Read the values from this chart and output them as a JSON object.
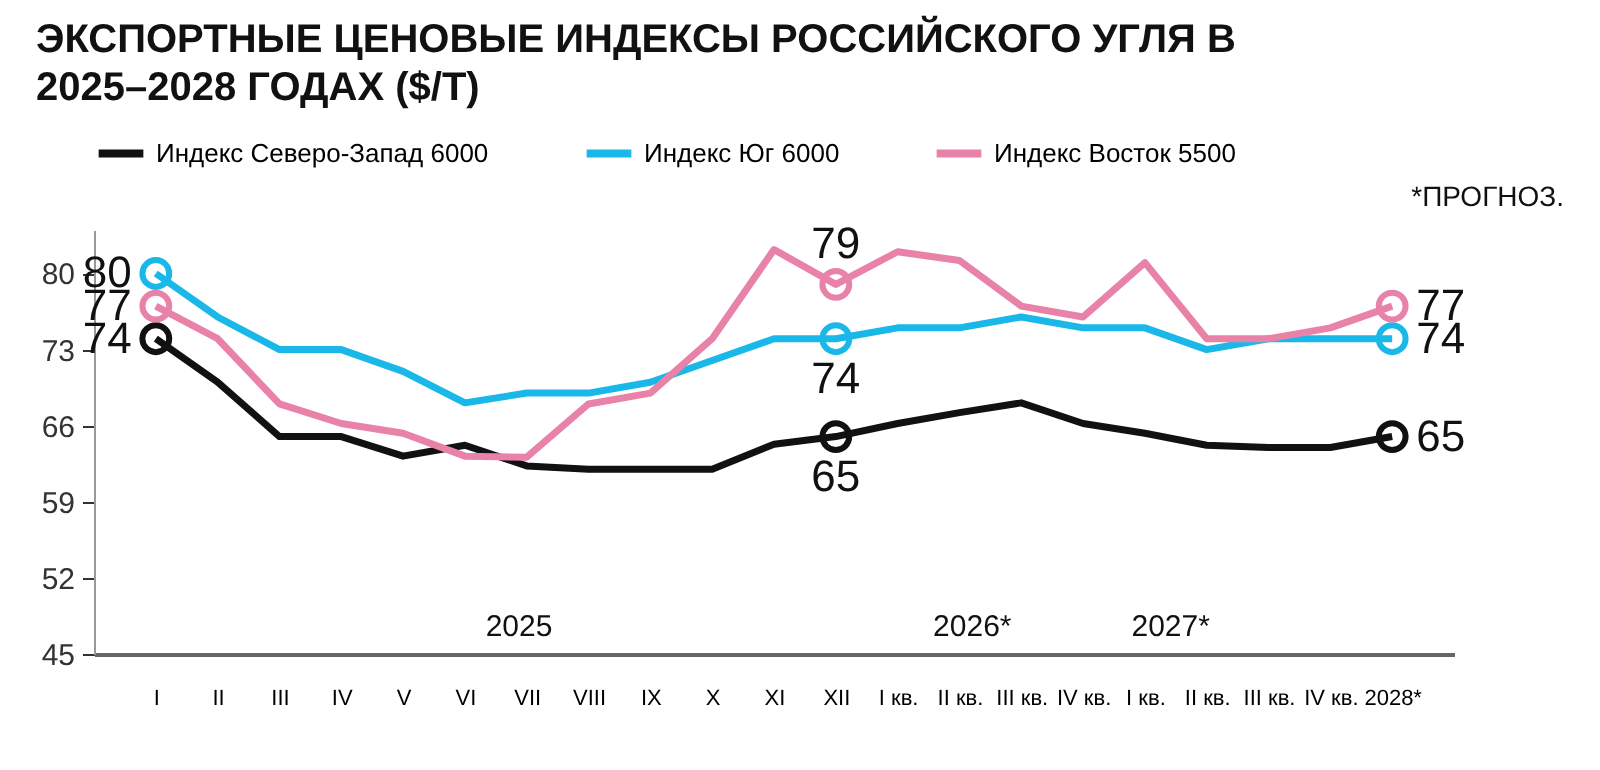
{
  "chart_data": {
    "type": "line",
    "title": "ЭКСПОРТНЫЕ ЦЕНОВЫЕ ИНДЕКСЫ РОССИЙСКОГО УГЛЯ В 2025–2028 ГОДАХ ($/Т)",
    "categories": [
      "I",
      "II",
      "III",
      "IV",
      "V",
      "VI",
      "VII",
      "VIII",
      "IX",
      "X",
      "XI",
      "XII",
      "I кв.",
      "II кв.",
      "III кв.",
      "IV кв.",
      "I кв.",
      "II кв.",
      "III кв.",
      "IV кв.",
      "2028*"
    ],
    "series": [
      {
        "name": "Индекс Северо-Запад 6000",
        "color": "#111111",
        "values": [
          74,
          70,
          65,
          65,
          63.2,
          64.2,
          62.3,
          62,
          62,
          62,
          64.3,
          65,
          66.2,
          67.2,
          68.1,
          66.2,
          65.3,
          64.2,
          64,
          64,
          65
        ],
        "value_labels": [
          "74",
          null,
          null,
          null,
          null,
          null,
          null,
          null,
          null,
          null,
          null,
          "65",
          null,
          null,
          null,
          null,
          null,
          null,
          null,
          null,
          "65"
        ]
      },
      {
        "name": "Индекс Юг 6000",
        "color": "#1ab8e8",
        "values": [
          80,
          76,
          73,
          73,
          71,
          68.1,
          69,
          69,
          70,
          72,
          74,
          74,
          75,
          75,
          76,
          75,
          75,
          73,
          74,
          74,
          74
        ],
        "value_labels": [
          "80",
          null,
          null,
          null,
          null,
          null,
          null,
          null,
          null,
          null,
          null,
          "74",
          null,
          null,
          null,
          null,
          null,
          null,
          null,
          null,
          "74"
        ]
      },
      {
        "name": "Индекс Восток 5500",
        "color": "#e882a8",
        "values": [
          77,
          74,
          68,
          66.2,
          65.3,
          63.2,
          63.1,
          68,
          69,
          74,
          82.2,
          79,
          82,
          81.2,
          77,
          76,
          81,
          74,
          74,
          75,
          77
        ],
        "value_labels": [
          "77",
          null,
          null,
          null,
          null,
          null,
          null,
          null,
          null,
          null,
          null,
          "79",
          null,
          null,
          null,
          null,
          null,
          null,
          null,
          null,
          "77"
        ]
      }
    ],
    "ylim": [
      45,
      84
    ],
    "yticks": [
      45,
      52,
      59,
      66,
      73,
      80
    ],
    "grid": false,
    "legend": "top",
    "annotations": [
      "2025",
      "2026*",
      "2027*",
      "*ПРОГНОЗ."
    ]
  }
}
